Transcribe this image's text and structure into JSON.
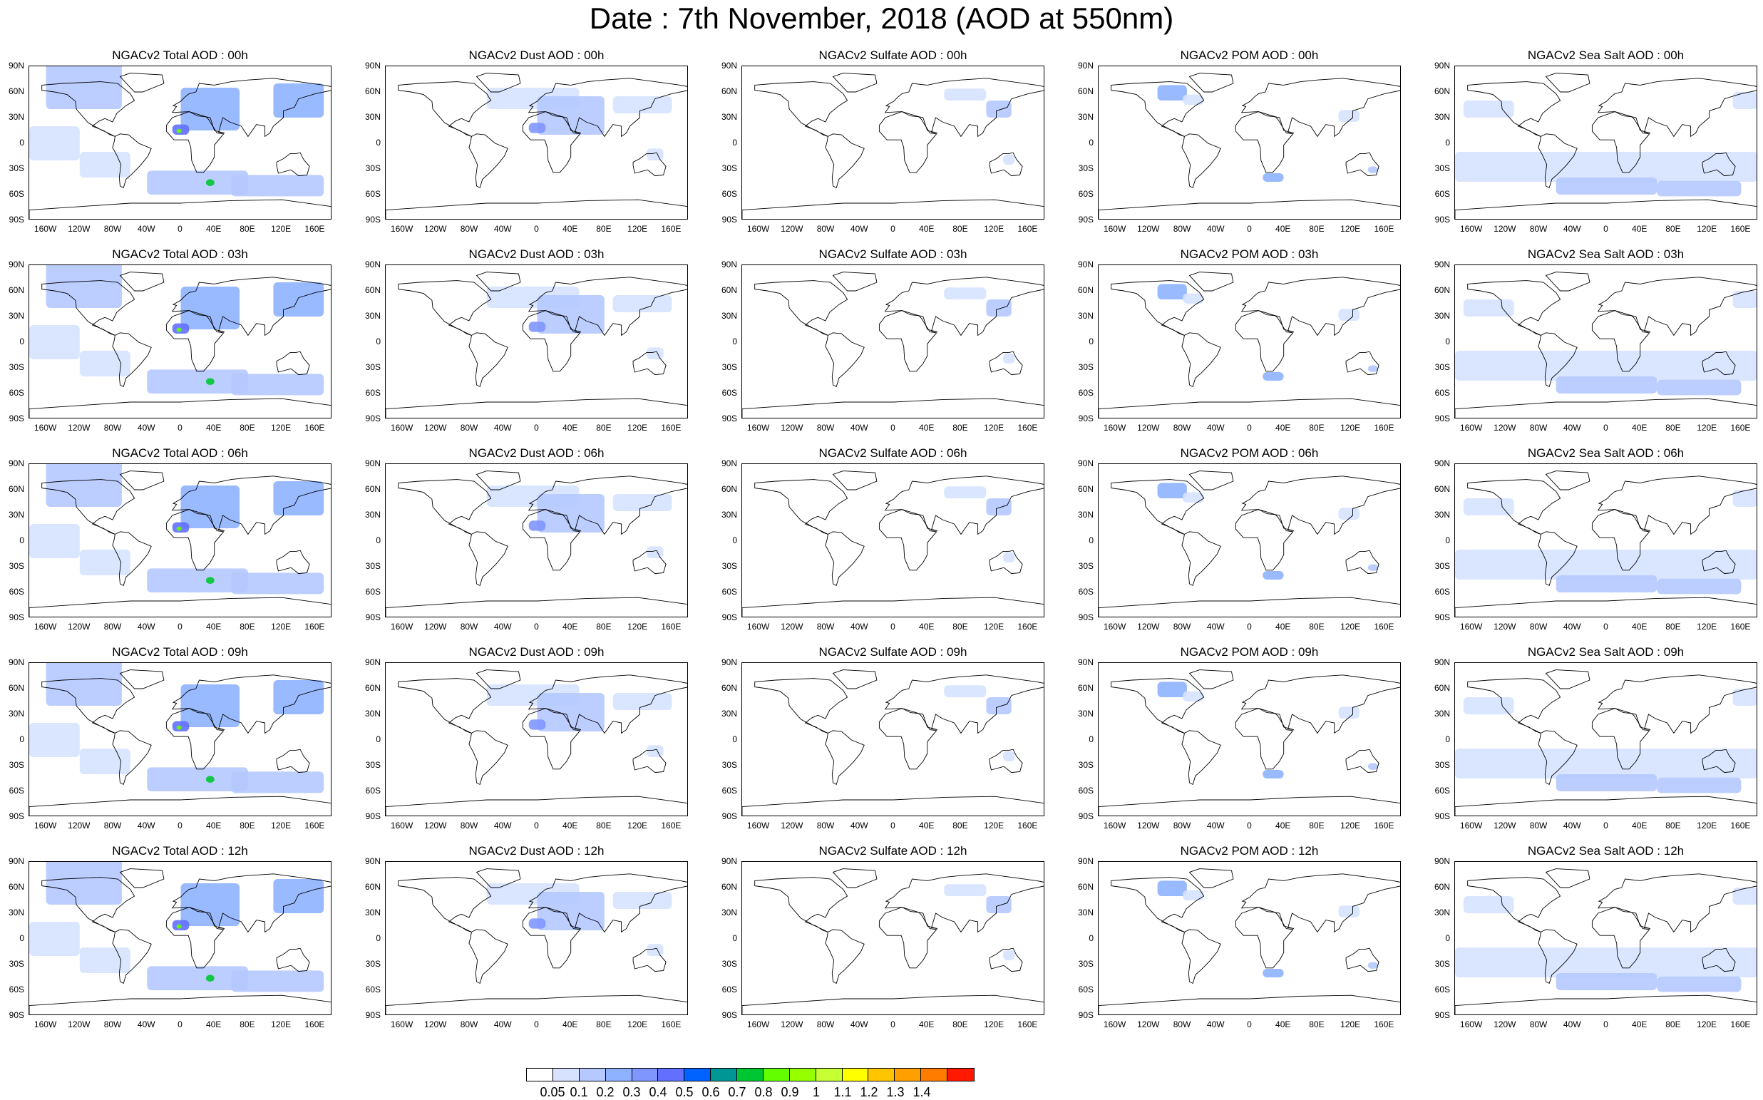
{
  "title": "Date : 7th November, 2018 (AOD at 550nm)",
  "lat_labels": [
    "90N",
    "60N",
    "30N",
    "0",
    "30S",
    "60S",
    "90S"
  ],
  "lon_labels": [
    "160W",
    "120W",
    "80W",
    "40W",
    "0",
    "40E",
    "80E",
    "120E",
    "160E"
  ],
  "panels": [
    [
      "NGACv2 Total AOD : 00h",
      "NGACv2 Dust AOD : 00h",
      "NGACv2 Sulfate AOD : 00h",
      "NGACv2 POM AOD : 00h",
      "NGACv2 Sea Salt AOD : 00h"
    ],
    [
      "NGACv2 Total AOD : 03h",
      "NGACv2 Dust AOD : 03h",
      "NGACv2 Sulfate AOD : 03h",
      "NGACv2 POM AOD : 03h",
      "NGACv2 Sea Salt AOD : 03h"
    ],
    [
      "NGACv2 Total AOD : 06h",
      "NGACv2 Dust AOD : 06h",
      "NGACv2 Sulfate AOD : 06h",
      "NGACv2 POM AOD : 06h",
      "NGACv2 Sea Salt AOD : 06h"
    ],
    [
      "NGACv2 Total AOD : 09h",
      "NGACv2 Dust AOD : 09h",
      "NGACv2 Sulfate AOD : 09h",
      "NGACv2 POM AOD : 09h",
      "NGACv2 Sea Salt  AOD : 09h"
    ],
    [
      "NGACv2 Total AOD  : 12h",
      "NGACv2 Dust AOD : 12h",
      "NGACv2 Sulfate AOD : 12h",
      "NGACv2 POM  AOD : 12h",
      "NGACv2 Sea Salt  AOD : 12h"
    ]
  ],
  "colorbar": {
    "labels": [
      "0.05",
      "0.1",
      "0.2",
      "0.3",
      "0.4",
      "0.5",
      "0.6",
      "0.7",
      "0.8",
      "0.9",
      "1",
      "1.1",
      "1.2",
      "1.3",
      "1.4"
    ],
    "colors": [
      "#ffffff",
      "#d6e2ff",
      "#b5c9ff",
      "#8eb2ff",
      "#7f96ff",
      "#6370ff",
      "#0063ff",
      "#009696",
      "#00c633",
      "#63ff00",
      "#96ff00",
      "#c6ff33",
      "#ffff00",
      "#ffc600",
      "#ffa000",
      "#ff7c00",
      "#ff1900"
    ]
  }
}
